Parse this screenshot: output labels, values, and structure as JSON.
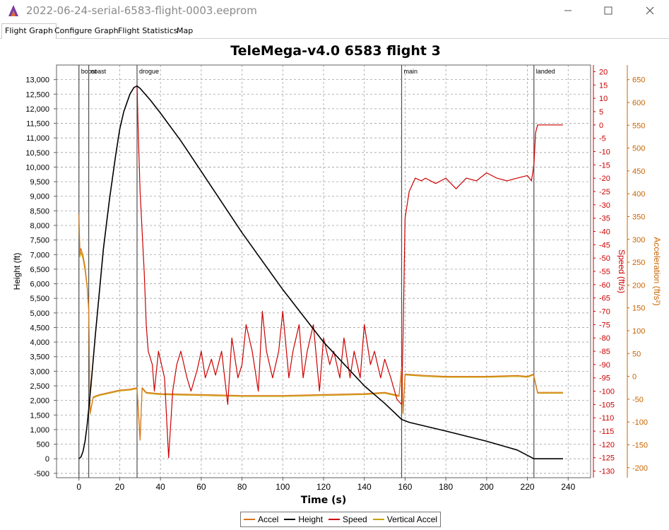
{
  "window": {
    "title": "2022-06-24-serial-6583-flight-0003.eeprom",
    "app_icon": "altos-logo-icon",
    "minimize_icon": "minimize-icon",
    "maximize_icon": "maximize-icon",
    "close_icon": "close-icon"
  },
  "tabs": [
    {
      "label": "Flight Graph",
      "active": true
    },
    {
      "label": "Configure Graph",
      "active": false
    },
    {
      "label": "Flight Statistics",
      "active": false
    },
    {
      "label": "Map",
      "active": false
    }
  ],
  "colors": {
    "accel": "#d9731a",
    "height": "#000000",
    "speed": "#cc0000",
    "vertical_accel": "#c8a000",
    "grid": "#a0a0a0",
    "event_line": "#505050",
    "speed_axis": "#cc0000",
    "accel_axis": "#c86400"
  },
  "chart_data": {
    "type": "line",
    "title": "TeleMega-v4.0 6583 flight 3",
    "xlabel": "Time (s)",
    "xlim": [
      -11,
      251
    ],
    "x_ticks": [
      0,
      20,
      40,
      60,
      80,
      100,
      120,
      140,
      160,
      180,
      200,
      220,
      240
    ],
    "grid": true,
    "legend_position": "bottom-center",
    "axes": {
      "height": {
        "label": "Height (ft)",
        "range": [
          -650,
          13500
        ],
        "ticks": [
          -500,
          0,
          500,
          1000,
          1500,
          2000,
          2500,
          3000,
          3500,
          4000,
          4500,
          5000,
          5500,
          6000,
          6500,
          7000,
          7500,
          8000,
          8500,
          9000,
          9500,
          10000,
          10500,
          11000,
          11500,
          12000,
          12500,
          13000
        ],
        "tick_labels": [
          "-500",
          "0",
          "500",
          "1,000",
          "1,500",
          "2,000",
          "2,500",
          "3,000",
          "3,500",
          "4,000",
          "4,500",
          "5,000",
          "5,500",
          "6,000",
          "6,500",
          "7,000",
          "7,500",
          "8,000",
          "8,500",
          "9,000",
          "9,500",
          "10,000",
          "10,500",
          "11,000",
          "11,500",
          "12,000",
          "12,500",
          "13,000"
        ]
      },
      "speed": {
        "label": "Speed (ft/s)",
        "range": [
          -132.5,
          22.5
        ],
        "ticks": [
          20,
          15,
          10,
          5,
          0,
          -5,
          -10,
          -15,
          -20,
          -25,
          -30,
          -35,
          -40,
          -45,
          -50,
          -55,
          -60,
          -65,
          -70,
          -75,
          -80,
          -85,
          -90,
          -95,
          -100,
          -105,
          -110,
          -115,
          -120,
          -125,
          -130
        ]
      },
      "acceleration": {
        "label": "Acceleration (ft/s²)",
        "range": [
          -222,
          682
        ],
        "ticks": [
          650,
          600,
          550,
          500,
          450,
          400,
          350,
          300,
          250,
          200,
          150,
          100,
          50,
          0,
          -50,
          -100,
          -150,
          -200
        ]
      }
    },
    "events": [
      {
        "label": "boost",
        "t": 0
      },
      {
        "label": "coast",
        "t": 4.8
      },
      {
        "label": "drogue",
        "t": 28.5
      },
      {
        "label": "main",
        "t": 158.3
      },
      {
        "label": "landed",
        "t": 223.2
      }
    ],
    "series": [
      {
        "name": "Accel",
        "axis": "acceleration",
        "x": [
          0,
          0.5,
          1,
          2,
          3,
          4,
          4.8,
          5.5,
          7,
          10,
          15,
          20,
          25,
          28.5,
          30,
          31,
          33,
          40,
          60,
          80,
          100,
          120,
          140,
          150,
          157,
          158.3,
          159,
          160,
          170,
          180,
          200,
          215,
          220,
          223,
          225,
          230,
          237.5
        ],
        "y": [
          355,
          270,
          280,
          265,
          240,
          200,
          150,
          -80,
          -45,
          -40,
          -35,
          -30,
          -28,
          -25,
          -140,
          -25,
          -35,
          -38,
          -40,
          -42,
          -42,
          -40,
          -38,
          -35,
          -42,
          20,
          -80,
          5,
          2,
          0,
          0,
          2,
          0,
          5,
          -35,
          -35,
          -35
        ]
      },
      {
        "name": "Height",
        "axis": "height",
        "x": [
          0,
          1,
          2,
          3,
          4,
          4.8,
          6,
          8,
          10,
          12,
          15,
          18,
          20,
          22,
          25,
          27,
          28.5,
          30,
          35,
          40,
          50,
          60,
          80,
          100,
          120,
          140,
          150,
          158.3,
          162,
          180,
          200,
          215,
          223.2,
          230,
          237.5
        ],
        "y": [
          0,
          60,
          250,
          600,
          1150,
          1700,
          2600,
          4200,
          5700,
          7200,
          8900,
          10400,
          11300,
          11900,
          12500,
          12730,
          12780,
          12700,
          12300,
          11850,
          10900,
          9850,
          7750,
          5800,
          4000,
          2500,
          1900,
          1350,
          1250,
          950,
          600,
          300,
          0,
          0,
          0
        ]
      },
      {
        "name": "Speed",
        "axis": "speed",
        "x": [
          28.5,
          29,
          30,
          32,
          33,
          34,
          36,
          37,
          39,
          42,
          44,
          46,
          48,
          50,
          53,
          55,
          58,
          60,
          62,
          65,
          67,
          70,
          73,
          75,
          78,
          80,
          82,
          85,
          88,
          90,
          92,
          95,
          98,
          100,
          103,
          105,
          108,
          110,
          112,
          115,
          118,
          120,
          123,
          125,
          128,
          130,
          133,
          135,
          138,
          140,
          143,
          145,
          148,
          150,
          153,
          156,
          158.3,
          159,
          160,
          162,
          165,
          168,
          170,
          175,
          180,
          185,
          190,
          195,
          200,
          205,
          210,
          215,
          220,
          222,
          223.2,
          224,
          225,
          230,
          235,
          237.5
        ],
        "y": [
          15,
          0,
          -25,
          -55,
          -75,
          -85,
          -90,
          -100,
          -85,
          -95,
          -125,
          -100,
          -90,
          -85,
          -95,
          -100,
          -92,
          -85,
          -95,
          -88,
          -94,
          -85,
          -105,
          -80,
          -95,
          -90,
          -75,
          -85,
          -100,
          -70,
          -85,
          -95,
          -85,
          -70,
          -95,
          -85,
          -75,
          -95,
          -85,
          -75,
          -100,
          -80,
          -90,
          -85,
          -95,
          -80,
          -95,
          -85,
          -95,
          -75,
          -90,
          -85,
          -95,
          -88,
          -95,
          -103,
          -105,
          -80,
          -35,
          -25,
          -20,
          -21,
          -20,
          -22,
          -20,
          -24,
          -20,
          -21,
          -18,
          -20,
          -21,
          -20,
          -19,
          -21,
          -15,
          -3,
          0,
          0,
          0,
          0
        ]
      },
      {
        "name": "Vertical Accel",
        "axis": "acceleration",
        "x": [
          0,
          0.5,
          1,
          2,
          3,
          4,
          4.8,
          5.5,
          7,
          10,
          15,
          20,
          25,
          28.5,
          30,
          31,
          33,
          40,
          60,
          80,
          100,
          120,
          140,
          150,
          157,
          158.3,
          159,
          160,
          170,
          180,
          200,
          215,
          220,
          223,
          225,
          230,
          237.5
        ],
        "y": [
          340,
          262,
          272,
          258,
          232,
          195,
          142,
          -82,
          -47,
          -42,
          -37,
          -32,
          -30,
          -27,
          -138,
          -27,
          -37,
          -40,
          -42,
          -44,
          -44,
          -42,
          -40,
          -37,
          -44,
          18,
          -82,
          3,
          0,
          -2,
          -2,
          0,
          -2,
          3,
          -37,
          -37,
          -37
        ]
      }
    ]
  },
  "legend": [
    "Accel",
    "Height",
    "Speed",
    "Vertical Accel"
  ]
}
